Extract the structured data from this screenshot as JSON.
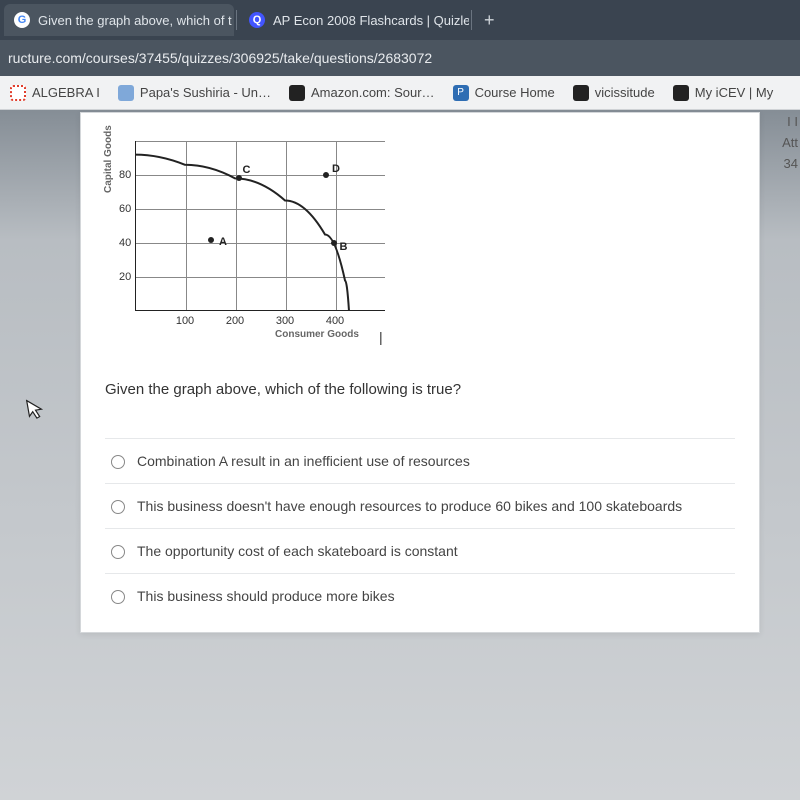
{
  "tabs": [
    {
      "title": "Given the graph above, which of t",
      "favicon_letter": "G",
      "favicon_class": "fav-g"
    },
    {
      "title": "AP Econ 2008 Flashcards | Quizle",
      "favicon_letter": "Q",
      "favicon_class": "fav-q"
    }
  ],
  "url": "ructure.com/courses/37455/quizzes/306925/take/questions/2683072",
  "bookmarks": [
    {
      "label": "ALGEBRA I",
      "icon_color": "#fff",
      "icon_border": "2px dotted #e03e2d",
      "icon_text": ""
    },
    {
      "label": "Papa's Sushiria - Un…",
      "icon_color": "#7fa8d9",
      "icon_text": ""
    },
    {
      "label": "Amazon.com: Sour…",
      "icon_color": "#222",
      "icon_text": "",
      "icon_fg": "#fff"
    },
    {
      "label": "Course Home",
      "icon_color": "#2e6db3",
      "icon_text": "P",
      "icon_fg": "#fff"
    },
    {
      "label": "vicissitude",
      "icon_color": "#222",
      "icon_text": "",
      "icon_fg": "#fff"
    },
    {
      "label": "My iCEV | My",
      "icon_color": "#222",
      "icon_text": "",
      "icon_fg": "#fff"
    }
  ],
  "side_info": {
    "line1": "I I",
    "line2": "Att",
    "line3": "34"
  },
  "chart": {
    "type": "line",
    "y_label": "Capital Goods",
    "x_label": "Consumer Goods",
    "x_range": [
      0,
      500
    ],
    "x_ticks": [
      100,
      200,
      300,
      400
    ],
    "y_range": [
      0,
      100
    ],
    "y_ticks": [
      20,
      40,
      60,
      80
    ],
    "grid_color": "#888888",
    "axis_color": "#222222",
    "curve_color": "#222222",
    "curve_width": 2,
    "curve_points": [
      [
        0,
        92
      ],
      [
        100,
        86
      ],
      [
        200,
        78
      ],
      [
        300,
        65
      ],
      [
        380,
        45
      ],
      [
        420,
        18
      ],
      [
        428,
        0
      ]
    ],
    "points": {
      "A": {
        "x": 150,
        "y": 42,
        "label_dx": 8,
        "label_dy": -4
      },
      "B": {
        "x": 395,
        "y": 40,
        "label_dx": 6,
        "label_dy": -2
      },
      "C": {
        "x": 205,
        "y": 78,
        "label_dx": 4,
        "label_dy": -14
      },
      "D": {
        "x": 380,
        "y": 80,
        "label_dx": 6,
        "label_dy": -12
      }
    },
    "background_color": "#ffffff"
  },
  "question": "Given the graph above, which of the following is true?",
  "options": [
    "Combination A result in an inefficient use of resources",
    "This business doesn't have enough resources to produce 60 bikes and 100 skateboards",
    "The opportunity cost of each skateboard is constant",
    "This business should produce more bikes"
  ],
  "tab_close_glyph": "×",
  "tab_new_glyph": "+"
}
